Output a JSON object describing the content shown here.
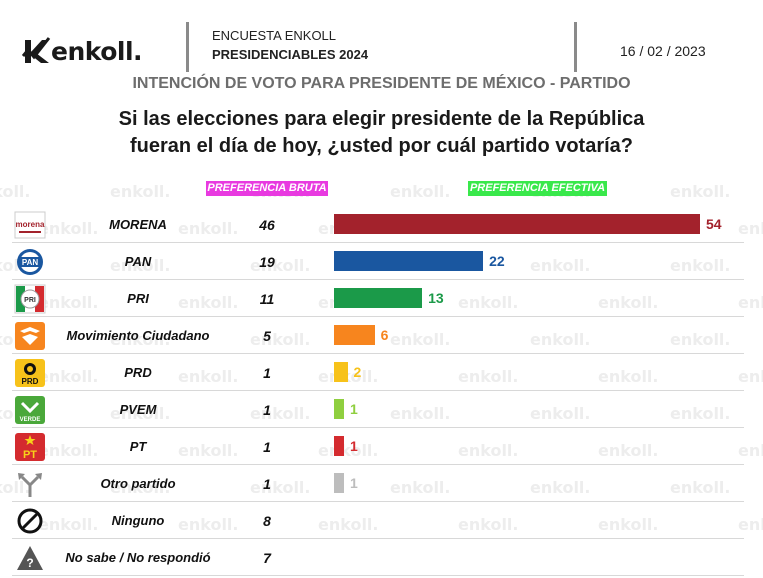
{
  "header": {
    "brand": "enkoll.",
    "survey_line1": "ENCUESTA ENKOLL",
    "survey_line2": "PRESIDENCIABLES 2024",
    "date": "16 / 02 / 2023"
  },
  "subtitle": "INTENCIÓN DE VOTO PARA PRESIDENTE DE MÉXICO - PARTIDO",
  "question": {
    "line1": "Si las elecciones para elegir presidente de la República",
    "line2": "fueran el día de hoy, ¿usted por cuál partido votaría?"
  },
  "columns": {
    "bruta": "PREFERENCIA BRUTA",
    "efectiva": "PREFERENCIA EFECTIVA"
  },
  "watermark_text": "enkoll.",
  "colors": {
    "morena": "#a3222c",
    "pan": "#1a57a0",
    "pri": "#1b9a49",
    "mc": "#f7851e",
    "prd": "#f7c21a",
    "pvem": "#8fcf3f",
    "pt": "#d42b2f",
    "otro": "#bdbdbd"
  },
  "chart_data": {
    "type": "bar",
    "title": "INTENCIÓN DE VOTO PARA PRESIDENTE DE MÉXICO - PARTIDO",
    "categories": [
      "MORENA",
      "PAN",
      "PRI",
      "Movimiento Ciudadano",
      "PRD",
      "PVEM",
      "PT",
      "Otro partido",
      "Ninguno",
      "No sabe / No respondió"
    ],
    "series": [
      {
        "name": "PREFERENCIA BRUTA",
        "values": [
          46,
          19,
          11,
          5,
          1,
          1,
          1,
          1,
          8,
          7
        ]
      },
      {
        "name": "PREFERENCIA EFECTIVA",
        "values": [
          54,
          22,
          13,
          6,
          2,
          1,
          1,
          1,
          null,
          null
        ]
      }
    ],
    "xlim": [
      0,
      54
    ],
    "grid": false,
    "legend": "top"
  },
  "rows": [
    {
      "party": "MORENA",
      "icon": "morena-logo-icon",
      "icon_text": "morena",
      "bruta": "46",
      "efectiva": 54,
      "efectiva_label": "54",
      "color_key": "morena"
    },
    {
      "party": "PAN",
      "icon": "pan-logo-icon",
      "icon_text": "PAN",
      "bruta": "19",
      "efectiva": 22,
      "efectiva_label": "22",
      "color_key": "pan"
    },
    {
      "party": "PRI",
      "icon": "pri-logo-icon",
      "icon_text": "PRI",
      "bruta": "11",
      "efectiva": 13,
      "efectiva_label": "13",
      "color_key": "pri"
    },
    {
      "party": "Movimiento Ciudadano",
      "icon": "mc-logo-icon",
      "icon_text": "",
      "bruta": "5",
      "efectiva": 6,
      "efectiva_label": "6",
      "color_key": "mc"
    },
    {
      "party": "PRD",
      "icon": "prd-logo-icon",
      "icon_text": "PRD",
      "bruta": "1",
      "efectiva": 2,
      "efectiva_label": "2",
      "color_key": "prd"
    },
    {
      "party": "PVEM",
      "icon": "pvem-logo-icon",
      "icon_text": "VERDE",
      "bruta": "1",
      "efectiva": 1,
      "efectiva_label": "1",
      "color_key": "pvem"
    },
    {
      "party": "PT",
      "icon": "pt-logo-icon",
      "icon_text": "PT",
      "bruta": "1",
      "efectiva": 1,
      "efectiva_label": "1",
      "color_key": "pt"
    },
    {
      "party": "Otro partido",
      "icon": "split-arrows-icon",
      "icon_text": "",
      "bruta": "1",
      "efectiva": 1,
      "efectiva_label": "1",
      "color_key": "otro"
    },
    {
      "party": "Ninguno",
      "icon": "prohibited-icon",
      "icon_text": "",
      "bruta": "8",
      "efectiva": null,
      "efectiva_label": "",
      "color_key": ""
    },
    {
      "party": "No sabe / No respondió",
      "icon": "question-warning-icon",
      "icon_text": "",
      "bruta": "7",
      "efectiva": null,
      "efectiva_label": "",
      "color_key": ""
    }
  ]
}
